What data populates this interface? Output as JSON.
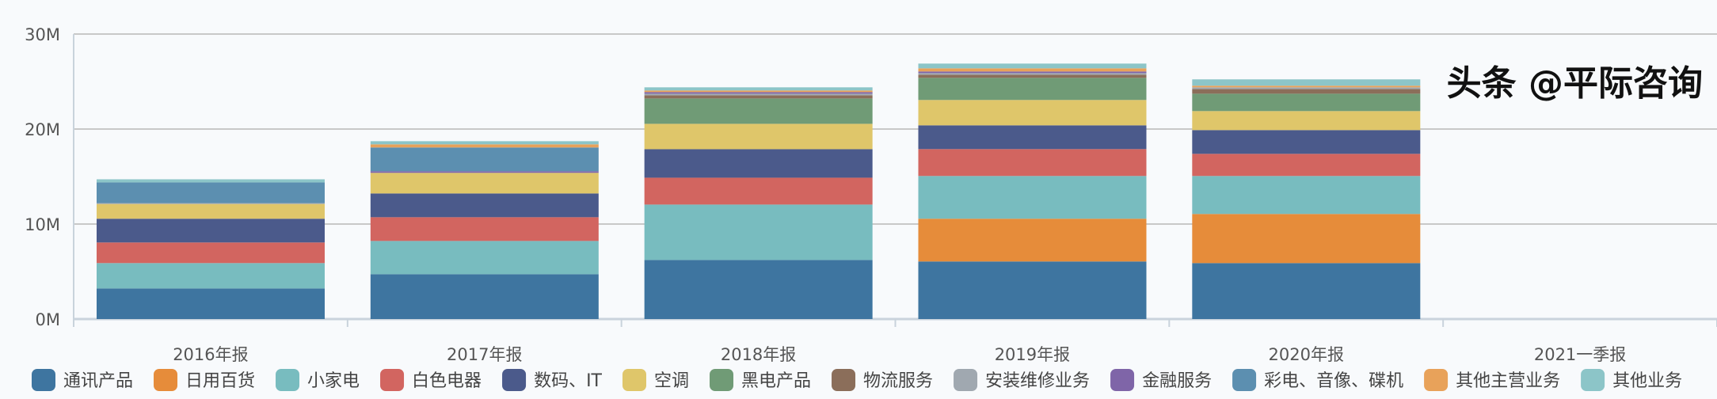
{
  "chart_data": {
    "type": "stacked-bar",
    "categories": [
      "2016年报",
      "2017年报",
      "2018年报",
      "2019年报",
      "2020年报",
      "2021一季报"
    ],
    "ylim": [
      0,
      30000000
    ],
    "yticks": [
      "0M",
      "10M",
      "20M",
      "30M"
    ],
    "grid": true,
    "legend_position": "bottom",
    "series": [
      {
        "name": "通讯产品",
        "color": "#3e75a0",
        "values": [
          3.22,
          4.72,
          6.22,
          6.06,
          5.89,
          null
        ]
      },
      {
        "name": "日用百货",
        "color": "#e68c3a",
        "values": [
          0,
          0,
          0,
          4.5,
          5.17,
          null
        ]
      },
      {
        "name": "小家电",
        "color": "#78bcbf",
        "values": [
          2.67,
          3.5,
          5.83,
          4.5,
          4.0,
          null
        ]
      },
      {
        "name": "白色电器",
        "color": "#d26560",
        "values": [
          2.17,
          2.5,
          2.83,
          2.83,
          2.33,
          null
        ]
      },
      {
        "name": "数码、IT",
        "color": "#4b5a8b",
        "values": [
          2.5,
          2.5,
          3.0,
          2.5,
          2.5,
          null
        ]
      },
      {
        "name": "空调",
        "color": "#dfc66a",
        "values": [
          1.55,
          2.17,
          2.67,
          2.67,
          2.0,
          null
        ]
      },
      {
        "name": "黑电产品",
        "color": "#709b76",
        "values": [
          0,
          0,
          2.67,
          2.33,
          1.83,
          null
        ]
      },
      {
        "name": "物流服务",
        "color": "#8b6e5a",
        "values": [
          0,
          0,
          0.33,
          0.33,
          0.5,
          null
        ]
      },
      {
        "name": "安装维修业务",
        "color": "#a0a8b0",
        "values": [
          0.1,
          0,
          0.17,
          0.17,
          0.17,
          null
        ]
      },
      {
        "name": "金融服务",
        "color": "#7f65a8",
        "values": [
          0,
          0.17,
          0.17,
          0.17,
          0,
          null
        ]
      },
      {
        "name": "彩电、音像、碟机",
        "color": "#5c8fb0",
        "values": [
          2.17,
          2.5,
          0,
          0,
          0,
          null
        ]
      },
      {
        "name": "其他主营业务",
        "color": "#e8a25a",
        "values": [
          0,
          0.33,
          0.17,
          0.33,
          0.17,
          null
        ]
      },
      {
        "name": "其他业务",
        "color": "#8cc5c8",
        "values": [
          0.33,
          0.33,
          0.33,
          0.5,
          0.67,
          null
        ]
      }
    ],
    "value_unit": "M"
  },
  "watermark": "头条 @平际咨询"
}
